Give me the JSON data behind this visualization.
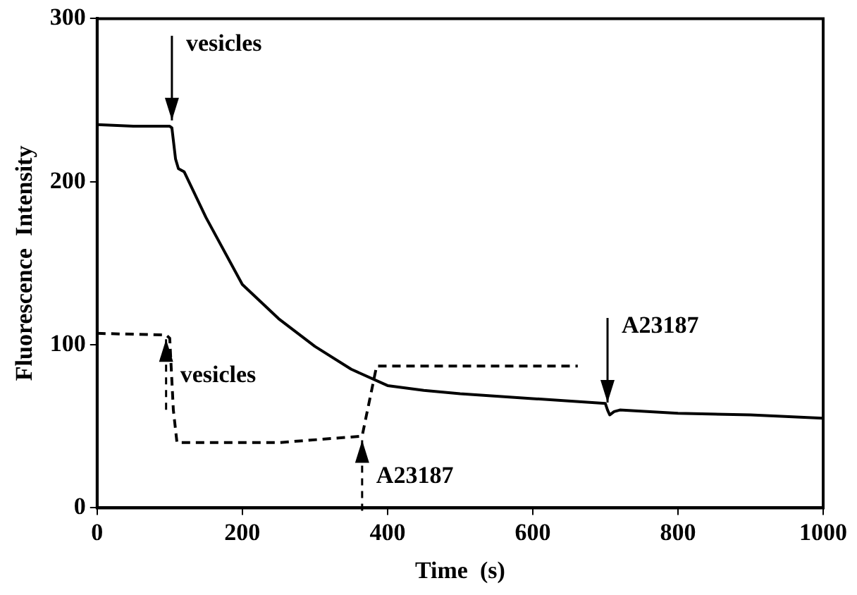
{
  "chart_data": {
    "type": "line",
    "xlabel": "Time  (s)",
    "ylabel": "Fluorescence  Intensity",
    "series": [
      {
        "color": "#000000",
        "line_style": "solid",
        "x": [
          0,
          50,
          100,
          103,
          108,
          112,
          120,
          150,
          200,
          250,
          300,
          350,
          400,
          450,
          500,
          600,
          700,
          703,
          706,
          712,
          720,
          800,
          900,
          1000
        ],
        "values": [
          235,
          234,
          234,
          233,
          214,
          208,
          206,
          178,
          137,
          116,
          99,
          85,
          75,
          72,
          70,
          67,
          64,
          60,
          57,
          59,
          60,
          58,
          57,
          55
        ]
      },
      {
        "color": "#000000",
        "line_style": "dashed",
        "x": [
          0,
          95,
          100,
          105,
          110,
          250,
          365,
          385,
          662
        ],
        "values": [
          107,
          106,
          104,
          60,
          40,
          40,
          44,
          87,
          87
        ]
      }
    ],
    "xlim": [
      0,
      1000
    ],
    "xticks": [
      0,
      200,
      400,
      600,
      800,
      1000
    ],
    "ylim": [
      0,
      300
    ],
    "yticks": [
      0,
      100,
      200,
      300
    ],
    "grid": false,
    "legend": false,
    "marker": "none",
    "annotations": [
      {
        "text": "vesicles",
        "x": 103,
        "y": 235
      },
      {
        "text": "vesicles",
        "x": 95,
        "y": 106
      },
      {
        "text": "A23187",
        "x": 703,
        "y": 62
      },
      {
        "text": "A23187",
        "x": 365,
        "y": 44
      }
    ]
  }
}
